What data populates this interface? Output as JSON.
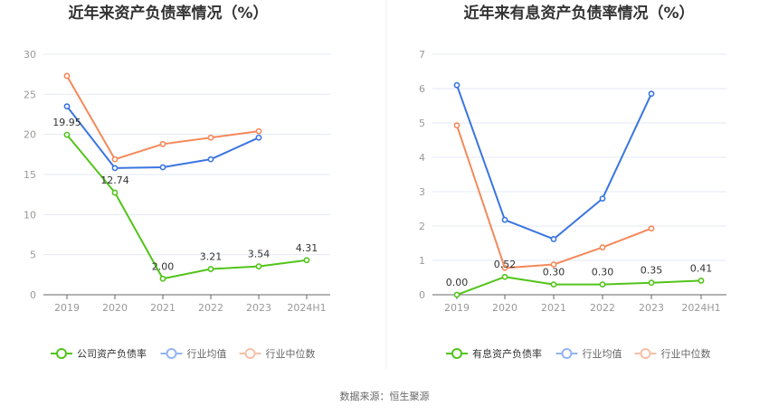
{
  "source": "数据来源：恒生聚源",
  "colors": {
    "company": "#52c41a",
    "avg": "#3a75e0",
    "median": "#f5895a",
    "avg_legend": "#93b4f2",
    "median_legend": "#f9bfa6",
    "grid": "#e3e8f4",
    "axis": "#666666"
  },
  "chart_data": [
    {
      "type": "line",
      "title": "近年来资产负债率情况（%）",
      "xlabel": "",
      "ylabel": "",
      "categories": [
        "2019",
        "2020",
        "2021",
        "2022",
        "2023",
        "2024H1"
      ],
      "ylim": [
        0,
        30
      ],
      "yticks": [
        0,
        5,
        10,
        15,
        20,
        25,
        30
      ],
      "grid": true,
      "legend_position": "bottom",
      "series": [
        {
          "name": "公司资产负债率",
          "values": [
            19.95,
            12.74,
            2.0,
            3.21,
            3.54,
            4.31
          ],
          "labels": [
            "19.95",
            "12.74",
            "2.00",
            "3.21",
            "3.54",
            "4.31"
          ]
        },
        {
          "name": "行业均值",
          "values": [
            23.5,
            15.8,
            15.9,
            16.9,
            19.6,
            null
          ]
        },
        {
          "name": "行业中位数",
          "values": [
            27.3,
            16.9,
            18.8,
            19.6,
            20.4,
            null
          ]
        }
      ]
    },
    {
      "type": "line",
      "title": "近年来有息资产负债率情况（%）",
      "xlabel": "",
      "ylabel": "",
      "categories": [
        "2019",
        "2020",
        "2021",
        "2022",
        "2023",
        "2024H1"
      ],
      "ylim": [
        0,
        7
      ],
      "yticks": [
        0,
        1,
        2,
        3,
        4,
        5,
        6,
        7
      ],
      "grid": true,
      "legend_position": "bottom",
      "series": [
        {
          "name": "有息资产负债率",
          "values": [
            0.0,
            0.52,
            0.3,
            0.3,
            0.35,
            0.41
          ],
          "labels": [
            "0.00",
            "0.52",
            "0.30",
            "0.30",
            "0.35",
            "0.41"
          ]
        },
        {
          "name": "行业均值",
          "values": [
            6.1,
            2.18,
            1.62,
            2.8,
            5.85,
            null
          ]
        },
        {
          "name": "行业中位数",
          "values": [
            4.93,
            0.78,
            0.88,
            1.38,
            1.93,
            null
          ]
        }
      ]
    }
  ]
}
